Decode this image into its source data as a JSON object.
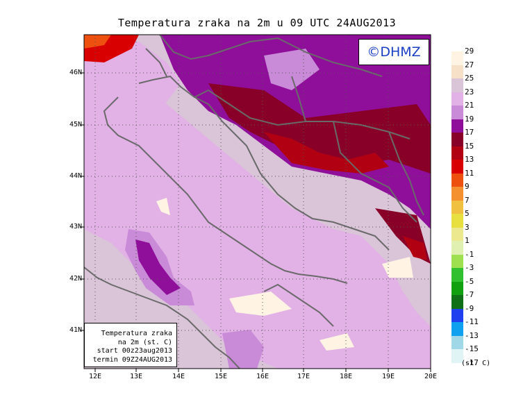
{
  "title": "Temperatura zraka na 2m u 09 UTC 24AUG2013",
  "logo": "©DHMZ",
  "info_box": [
    "Temperatura zraka",
    "na 2m (st. C)",
    "start 00z23aug2013",
    "termin 09Z24AUG2013"
  ],
  "lat_labels": [
    "46N",
    "45N",
    "44N",
    "43N",
    "42N",
    "41N"
  ],
  "lon_labels": [
    "12E",
    "13E",
    "14E",
    "15E",
    "16E",
    "17E",
    "18E",
    "19E",
    "20E"
  ],
  "legend": {
    "levels": [
      "29",
      "27",
      "25",
      "23",
      "21",
      "19",
      "17",
      "15",
      "13",
      "11",
      "9",
      "7",
      "5",
      "3",
      "1",
      "-1",
      "-3",
      "-5",
      "-7",
      "-9",
      "-11",
      "-13",
      "-15",
      "-17"
    ],
    "colors": [
      "#fff4e4",
      "#f6e1c8",
      "#d9c4d8",
      "#e2b1e6",
      "#c98ad8",
      "#8f0f9a",
      "#880028",
      "#b00012",
      "#d80000",
      "#ee5010",
      "#f49030",
      "#f0c040",
      "#e8e040",
      "#ece890",
      "#e0f0b0",
      "#9ee050",
      "#30c030",
      "#10a010",
      "#107018",
      "#2040f0",
      "#10a0f0",
      "#a0d8e8",
      "#e0f4f6"
    ],
    "units": "(st. C)"
  }
}
